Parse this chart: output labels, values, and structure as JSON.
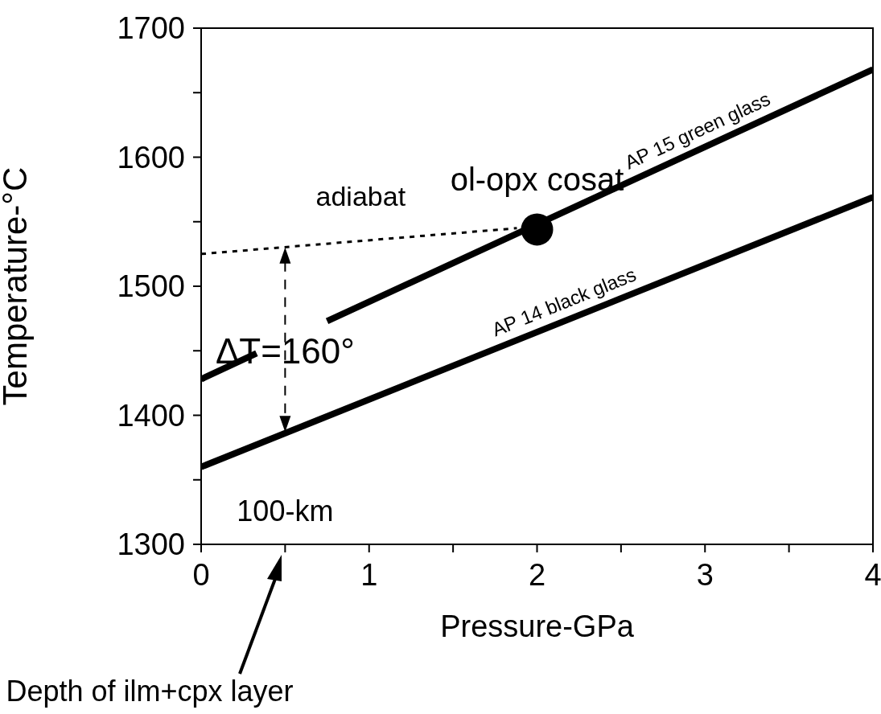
{
  "chart_data": {
    "type": "line",
    "xlabel": "Pressure-GPa",
    "ylabel": "Temperature-°C",
    "xlim": [
      0,
      4
    ],
    "ylim": [
      1300,
      1700
    ],
    "xticks": [
      0,
      {
        "value": 0.5,
        "label": null
      },
      1,
      {
        "value": 1.5,
        "label": null
      },
      2,
      {
        "value": 2.5,
        "label": null
      },
      3,
      {
        "value": 3.5,
        "label": null
      },
      4
    ],
    "yticks": [
      1300,
      {
        "value": 1350,
        "label": null
      },
      1400,
      {
        "value": 1450,
        "label": null
      },
      1500,
      {
        "value": 1550,
        "label": null
      },
      1600,
      {
        "value": 1650,
        "label": null
      },
      1700
    ],
    "grid": false,
    "legend": false,
    "series": [
      {
        "name": "AP 15 green glass",
        "color": "#000000",
        "x": [
          0,
          0.33,
          0.5,
          0.75,
          4
        ],
        "values": [
          1428,
          1448,
          null,
          1473,
          1668
        ]
      },
      {
        "name": "AP 14 black glass",
        "color": "#000000",
        "x": [
          0,
          4
        ],
        "values": [
          1360,
          1569
        ]
      },
      {
        "type": "line",
        "color": "#000000",
        "line_style": "dotted",
        "x": [
          0,
          1.88
        ],
        "values": [
          1525,
          1545
        ]
      },
      {
        "type": "scatter",
        "color": "#000000",
        "marker": "circle",
        "x": [
          2
        ],
        "values": [
          1544
        ]
      }
    ],
    "annotations": [
      "adiabat",
      {
        "text": "ol-opx cosat",
        "x": 2,
        "y": 1544
      },
      "ΔT=160°",
      "100-km",
      "Depth of ilm+cpx layer"
    ]
  }
}
